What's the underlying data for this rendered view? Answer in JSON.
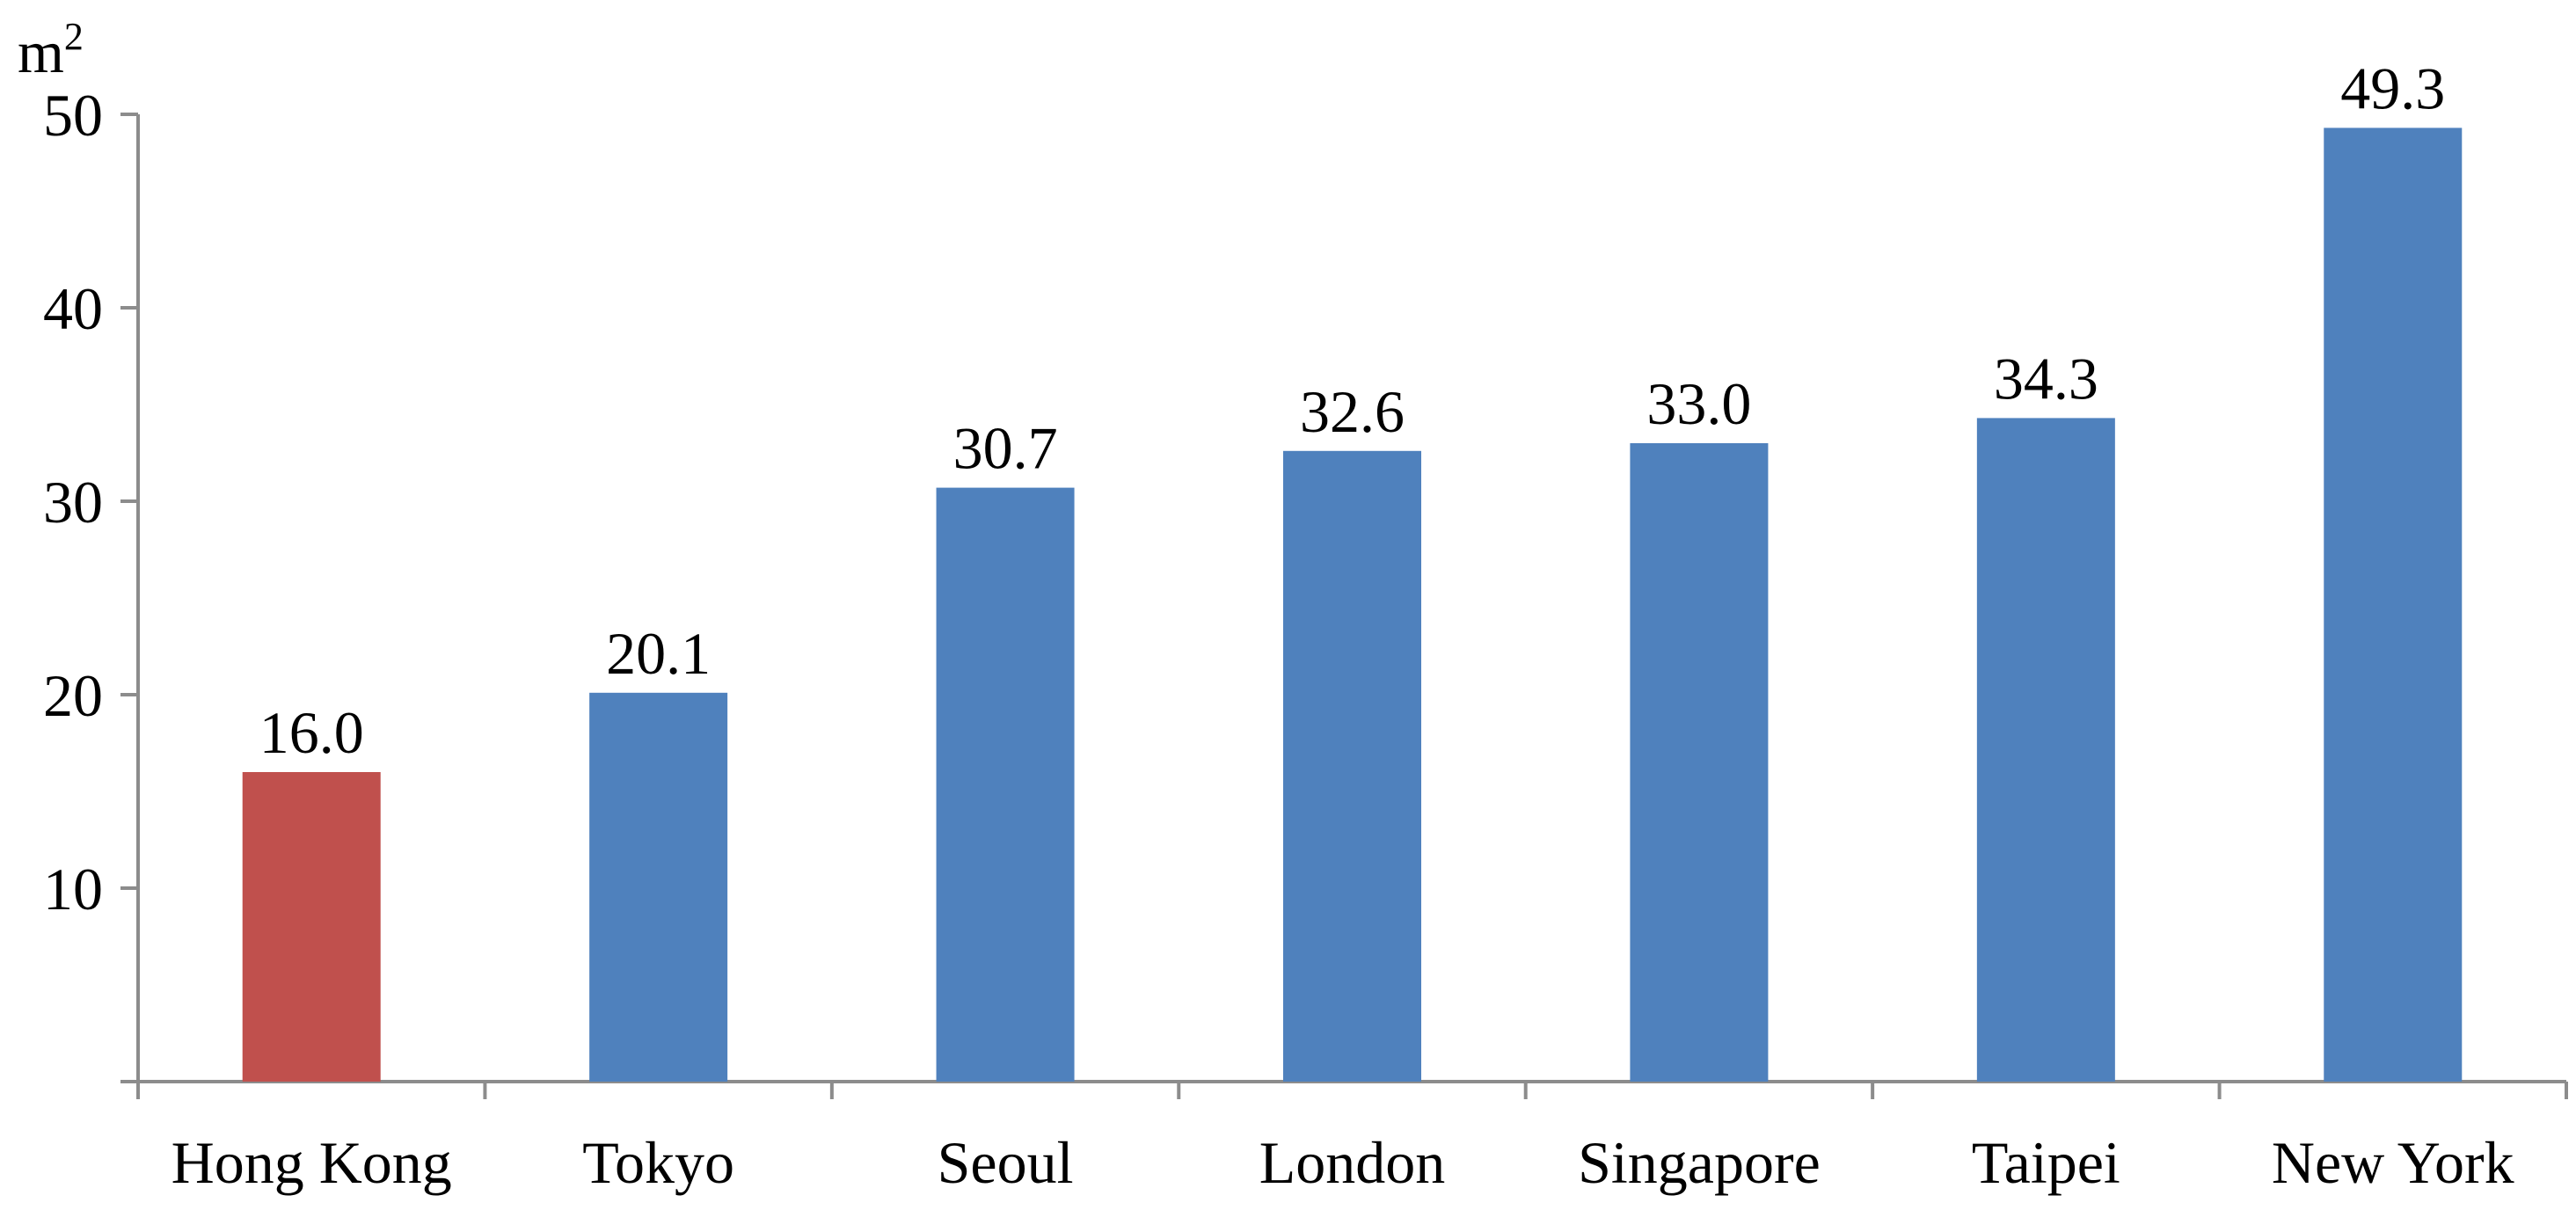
{
  "chart_data": {
    "type": "bar",
    "title": "",
    "xlabel": "",
    "ylabel": "m",
    "ylabel_superscript": "2",
    "categories": [
      "Hong Kong",
      "Tokyo",
      "Seoul",
      "London",
      "Singapore",
      "Taipei",
      "New York"
    ],
    "values": [
      16.0,
      20.1,
      30.7,
      32.6,
      33.0,
      34.3,
      49.3
    ],
    "value_labels": [
      "16.0",
      "20.1",
      "30.7",
      "32.6",
      "33.0",
      "34.3",
      "49.3"
    ],
    "bar_colors": [
      "#c0504d",
      "#4f81bd",
      "#4f81bd",
      "#4f81bd",
      "#4f81bd",
      "#4f81bd",
      "#4f81bd"
    ],
    "ylim": [
      0,
      50
    ],
    "yticks": [
      10,
      20,
      30,
      40,
      50
    ],
    "grid": false,
    "legend": "none"
  }
}
